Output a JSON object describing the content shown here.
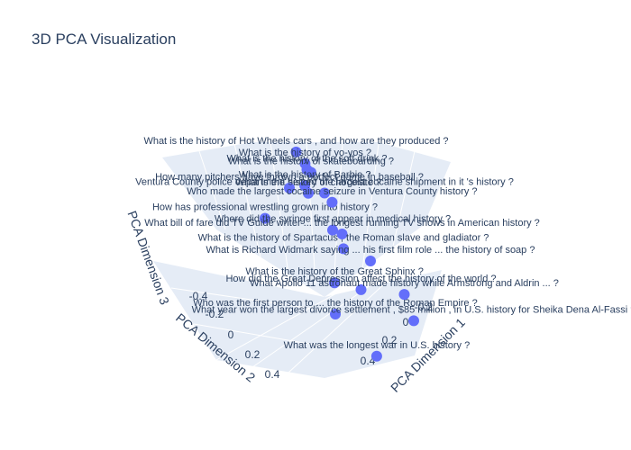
{
  "title": "3D PCA Visualization",
  "chart_data": {
    "type": "scatter3d",
    "title": "3D PCA Visualization",
    "axes": {
      "x": {
        "label": "PCA Dimension 1",
        "ticks": [
          "-0.2",
          "0",
          "0.2",
          "0.4"
        ]
      },
      "y": {
        "label": "PCA Dimension 2",
        "ticks": [
          "-0.4",
          "-0.2",
          "0",
          "0.2",
          "0.4"
        ]
      },
      "z": {
        "label": "PCA Dimension 3"
      }
    },
    "grid": true,
    "marker_color": "#636efa",
    "scene_bg": "#e5ecf6",
    "points": [
      {
        "label": "What is the history of Hot Wheels cars , and how are they produced ?",
        "x": -0.15,
        "y": 0.05,
        "z": 0.42
      },
      {
        "label": "What is the history of yo-yos ?",
        "x": -0.12,
        "y": 0.02,
        "z": 0.38
      },
      {
        "label": "What is the history of skateboarding ?",
        "x": -0.1,
        "y": 0.0,
        "z": 0.35
      },
      {
        "label": "What is the history of the soft drink ?",
        "x": 0.05,
        "y": 0.15,
        "z": 0.3
      },
      {
        "label": "What is the history of Barbie ?",
        "x": -0.05,
        "y": 0.08,
        "z": 0.28
      },
      {
        "label": "What is the history of chocolate ?",
        "x": 0.0,
        "y": 0.1,
        "z": 0.24
      },
      {
        "label": "How many pitchers have thrown a perfect game in baseball ?",
        "x": 0.1,
        "y": 0.3,
        "z": 0.2
      },
      {
        "label": "How has professional wrestling grown into history ?",
        "x": -0.2,
        "y": 0.2,
        "z": 0.18
      },
      {
        "label": "Ventura County police department seized the largest cocaine shipment in it 's history ?",
        "x": 0.3,
        "y": 0.25,
        "z": 0.15
      },
      {
        "label": "Who made the largest cocaine seizure in Ventura County history ?",
        "x": 0.32,
        "y": 0.22,
        "z": 0.12
      },
      {
        "label": "Where did the syringe first appear in medical history ?",
        "x": 0.12,
        "y": 0.05,
        "z": 0.1
      },
      {
        "label": "What bill of fare did TV Guide writer ... the longest running TV shows in American history ?",
        "x": 0.25,
        "y": 0.1,
        "z": 0.05
      },
      {
        "label": "What is the history of Spartacus , the Roman slave and gladiator ?",
        "x": 0.2,
        "y": 0.05,
        "z": 0.02
      },
      {
        "label": "What is Richard Widmark saying ... his first film role ... the history of soap ?",
        "x": 0.28,
        "y": -0.05,
        "z": -0.02
      },
      {
        "label": "What is the history of the Great Sphinx ?",
        "x": 0.05,
        "y": -0.02,
        "z": -0.05
      },
      {
        "label": "How did the Great Depression affect the history of the world ?",
        "x": 0.15,
        "y": -0.1,
        "z": -0.08
      },
      {
        "label": "Who was the first person to ... the history of the Roman Empire ?",
        "x": -0.1,
        "y": -0.15,
        "z": -0.1
      },
      {
        "label": "What Apollo 11 astronaut made history while Armstrong and Aldrin ... ?",
        "x": 0.35,
        "y": -0.2,
        "z": -0.12
      },
      {
        "label": "What year won the largest divorce settlement , $85 million , in U.S. history for Sheika Dena Al-Fassi ?",
        "x": 0.3,
        "y": -0.3,
        "z": -0.18
      },
      {
        "label": "What was the longest war in U.S. history ?",
        "x": 0.05,
        "y": -0.28,
        "z": -0.25
      }
    ]
  }
}
